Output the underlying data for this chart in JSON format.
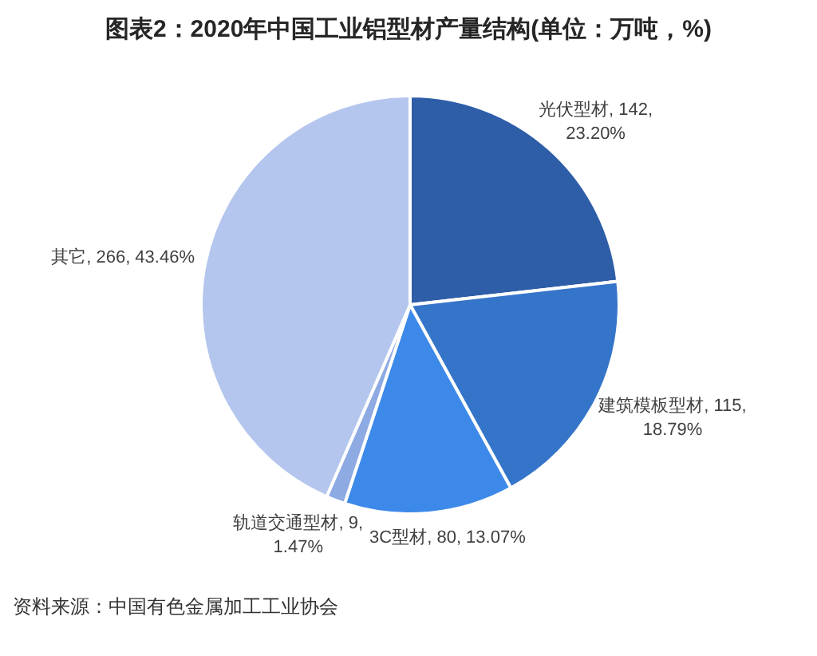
{
  "chart_data": {
    "type": "pie",
    "title": "图表2：2020年中国工业铝型材产量结构(单位：万吨，%)",
    "categories": [
      "光伏型材",
      "建筑模板型材",
      "3C型材",
      "轨道交通型材",
      "其它"
    ],
    "values": [
      142,
      115,
      80,
      9,
      266
    ],
    "value_labels": [
      "142, 23.20%",
      "115, 18.79%",
      "80, 13.07%",
      "9, 1.47%",
      "266, 43.46%"
    ],
    "colors": [
      "#2e5ea8",
      "#3575c9",
      "#3d89e9",
      "#8eaae3",
      "#b4c6ed"
    ],
    "annotations": [
      "资料来源：中国有色金属加工工业协会"
    ]
  }
}
